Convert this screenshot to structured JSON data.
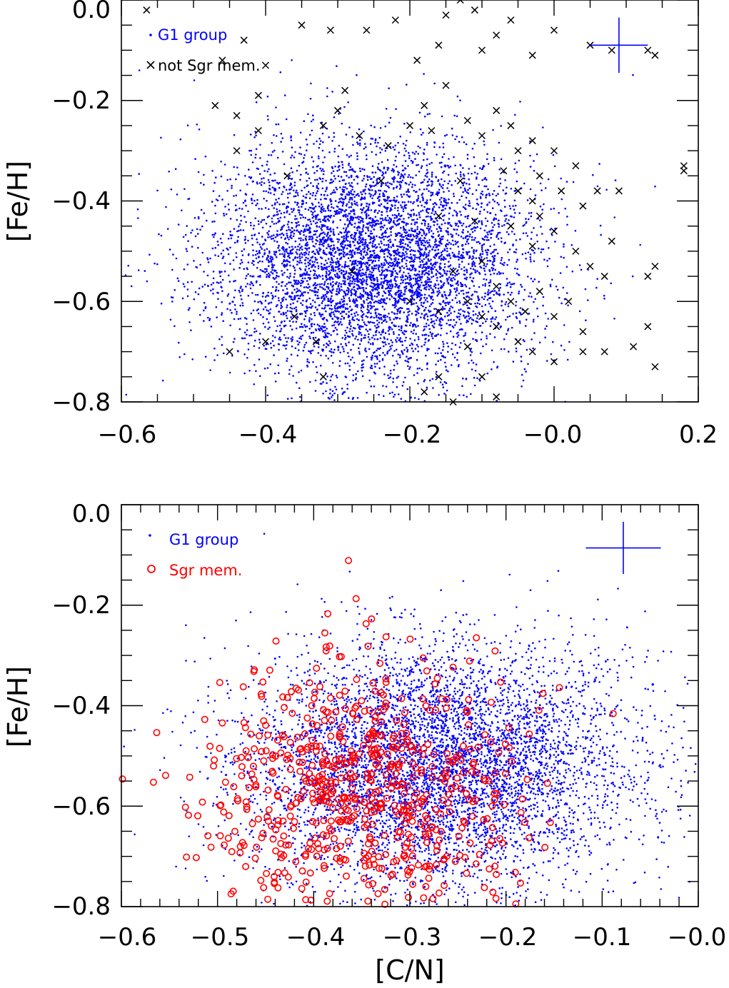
{
  "chart_data": [
    {
      "type": "scatter",
      "panel": "top",
      "title": "",
      "xlabel": "",
      "ylabel": "[Fe/H]",
      "xlim": [
        -0.6,
        0.2
      ],
      "ylim": [
        -0.8,
        0.0
      ],
      "xticks": [
        -0.6,
        -0.4,
        -0.2,
        0.0,
        0.2
      ],
      "xtick_labels": [
        "−0.6",
        "−0.4",
        "−0.2",
        "−0.0",
        "0.2"
      ],
      "yticks": [
        -0.8,
        -0.6,
        -0.4,
        -0.2,
        0.0
      ],
      "ytick_labels": [
        "−0.8",
        "−0.6",
        "−0.4",
        "−0.2",
        "0.0"
      ],
      "legend_position": "top-left",
      "series": [
        {
          "name": "G1 group",
          "marker": "dot",
          "color": "#0000ff",
          "approx_count": 6000,
          "center": [
            -0.25,
            -0.52
          ],
          "spread": [
            0.11,
            0.12
          ]
        },
        {
          "name": "not Sgr mem.",
          "marker": "x",
          "color": "#000000",
          "points": [
            [
              -0.565,
              -0.02
            ],
            [
              -0.35,
              -0.05
            ],
            [
              -0.46,
              -0.12
            ],
            [
              -0.43,
              -0.08
            ],
            [
              -0.47,
              -0.21
            ],
            [
              -0.41,
              -0.19
            ],
            [
              -0.4,
              -0.13
            ],
            [
              -0.44,
              -0.23
            ],
            [
              -0.41,
              -0.26
            ],
            [
              -0.37,
              -0.35
            ],
            [
              -0.44,
              -0.3
            ],
            [
              -0.31,
              -0.06
            ],
            [
              -0.29,
              -0.18
            ],
            [
              -0.26,
              -0.06
            ],
            [
              -0.22,
              -0.04
            ],
            [
              -0.19,
              -0.12
            ],
            [
              -0.16,
              -0.09
            ],
            [
              -0.18,
              -0.21
            ],
            [
              -0.15,
              -0.17
            ],
            [
              -0.15,
              -0.03
            ],
            [
              -0.13,
              0.0
            ],
            [
              -0.11,
              -0.02
            ],
            [
              -0.1,
              -0.1
            ],
            [
              -0.08,
              -0.07
            ],
            [
              -0.06,
              -0.04
            ],
            [
              -0.03,
              -0.11
            ],
            [
              0.0,
              -0.06
            ],
            [
              0.05,
              -0.09
            ],
            [
              0.08,
              -0.1
            ],
            [
              0.13,
              -0.1
            ],
            [
              0.14,
              -0.11
            ],
            [
              -0.12,
              -0.24
            ],
            [
              -0.1,
              -0.27
            ],
            [
              -0.08,
              -0.22
            ],
            [
              -0.06,
              -0.25
            ],
            [
              -0.05,
              -0.3
            ],
            [
              -0.03,
              -0.28
            ],
            [
              -0.02,
              -0.35
            ],
            [
              0.0,
              -0.3
            ],
            [
              0.03,
              -0.33
            ],
            [
              -0.07,
              -0.34
            ],
            [
              -0.05,
              -0.38
            ],
            [
              -0.03,
              -0.4
            ],
            [
              -0.02,
              -0.43
            ],
            [
              0.01,
              -0.38
            ],
            [
              0.04,
              -0.41
            ],
            [
              0.06,
              -0.38
            ],
            [
              0.09,
              -0.38
            ],
            [
              0.08,
              -0.48
            ],
            [
              -0.06,
              -0.45
            ],
            [
              -0.03,
              -0.49
            ],
            [
              0.0,
              -0.46
            ],
            [
              0.03,
              -0.5
            ],
            [
              0.05,
              -0.53
            ],
            [
              0.07,
              -0.55
            ],
            [
              -0.1,
              -0.52
            ],
            [
              -0.08,
              -0.57
            ],
            [
              -0.06,
              -0.6
            ],
            [
              -0.04,
              -0.62
            ],
            [
              -0.02,
              -0.58
            ],
            [
              0.0,
              -0.63
            ],
            [
              0.02,
              -0.6
            ],
            [
              0.04,
              -0.66
            ],
            [
              -0.14,
              -0.54
            ],
            [
              -0.12,
              -0.6
            ],
            [
              -0.1,
              -0.63
            ],
            [
              -0.08,
              -0.65
            ],
            [
              -0.05,
              -0.68
            ],
            [
              -0.03,
              -0.7
            ],
            [
              0.0,
              -0.72
            ],
            [
              0.04,
              -0.7
            ],
            [
              0.07,
              -0.7
            ],
            [
              -0.12,
              -0.69
            ],
            [
              -0.1,
              -0.75
            ],
            [
              -0.16,
              -0.75
            ],
            [
              -0.14,
              -0.8
            ],
            [
              -0.18,
              -0.78
            ],
            [
              -0.08,
              -0.79
            ],
            [
              0.11,
              -0.69
            ],
            [
              0.14,
              -0.73
            ],
            [
              0.13,
              -0.65
            ],
            [
              0.14,
              -0.53
            ],
            [
              0.13,
              -0.55
            ],
            [
              0.18,
              -0.33
            ],
            [
              0.18,
              -0.34
            ],
            [
              -0.36,
              -0.63
            ],
            [
              -0.33,
              -0.68
            ],
            [
              -0.32,
              -0.75
            ],
            [
              -0.45,
              -0.7
            ],
            [
              -0.4,
              -0.68
            ],
            [
              -0.2,
              -0.6
            ],
            [
              -0.16,
              -0.62
            ],
            [
              -0.28,
              -0.54
            ],
            [
              -0.24,
              -0.36
            ],
            [
              -0.13,
              -0.36
            ],
            [
              -0.16,
              -0.43
            ],
            [
              -0.11,
              -0.44
            ],
            [
              -0.32,
              -0.25
            ],
            [
              -0.3,
              -0.22
            ],
            [
              -0.27,
              -0.27
            ],
            [
              -0.23,
              -0.29
            ],
            [
              -0.2,
              -0.25
            ],
            [
              -0.17,
              -0.26
            ]
          ]
        }
      ],
      "error_bar": {
        "x": 0.09,
        "y": -0.09,
        "dx": 0.04,
        "dy": 0.055,
        "color": "#0000ff"
      }
    },
    {
      "type": "scatter",
      "panel": "bottom",
      "title": "",
      "xlabel": "[C/N]",
      "ylabel": "[Fe/H]",
      "xlim": [
        -0.6,
        0.0
      ],
      "ylim": [
        -0.8,
        0.0
      ],
      "xticks": [
        -0.6,
        -0.5,
        -0.4,
        -0.3,
        -0.2,
        -0.1,
        0.0
      ],
      "xtick_labels": [
        "−0.6",
        "−0.5",
        "−0.4",
        "−0.3",
        "−0.2",
        "−0.1",
        "−0.0"
      ],
      "yticks": [
        -0.8,
        -0.6,
        -0.4,
        -0.2,
        0.0
      ],
      "ytick_labels": [
        "−0.8",
        "−0.6",
        "−0.4",
        "−0.2",
        "0.0"
      ],
      "legend_position": "top-left",
      "series": [
        {
          "name": "G1 group",
          "marker": "dot",
          "color": "#0000ff",
          "approx_count": 6000,
          "center": [
            -0.27,
            -0.52
          ],
          "spread": [
            0.1,
            0.12
          ]
        },
        {
          "name": "Sgr mem.",
          "marker": "open-circle",
          "color": "#ff0000",
          "approx_count": 700,
          "center": [
            -0.35,
            -0.58
          ],
          "spread": [
            0.08,
            0.14
          ]
        }
      ],
      "error_bar": {
        "x": -0.078,
        "y": -0.086,
        "dx": 0.039,
        "dy": 0.052,
        "color": "#0000ff"
      }
    }
  ]
}
